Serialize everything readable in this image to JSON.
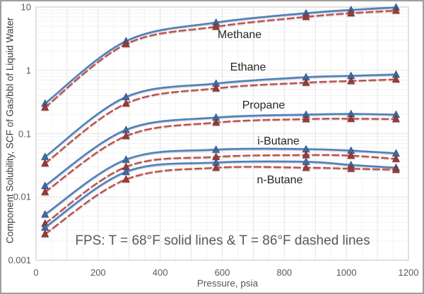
{
  "chart_data": {
    "type": "line",
    "title": "",
    "xlabel": "Pressure, psia",
    "ylabel": "Component Solubility, SCF of Gas/bbl of Liquid Water",
    "annotation": "FPS: T = 68°F solid lines & T = 86°F dashed lines",
    "legend_position": "none",
    "grid": true,
    "x_axis": {
      "min": 0,
      "max": 1200,
      "ticks": [
        0,
        200,
        400,
        600,
        800,
        1000,
        1200
      ],
      "minor_step": 50
    },
    "y_axis": {
      "scale": "log",
      "min": 0.001,
      "max": 10,
      "tick_labels": [
        "10",
        "1",
        "0.1",
        "0.01",
        "0.001"
      ]
    },
    "x": [
      29,
      290,
      580,
      870,
      1015,
      1160
    ],
    "series": [
      {
        "name": "Methane",
        "temperature": "68°F",
        "line": "solid",
        "color": "#4F81BD",
        "marker": "triangle",
        "values": [
          0.3,
          2.9,
          5.7,
          8.0,
          9.0,
          9.9
        ]
      },
      {
        "name": "Methane",
        "temperature": "86°F",
        "line": "dashed",
        "color": "#C0504D",
        "marker": "triangle",
        "values": [
          0.26,
          2.6,
          4.9,
          7.0,
          8.0,
          8.8
        ]
      },
      {
        "name": "Ethane",
        "temperature": "68°F",
        "line": "solid",
        "color": "#4F81BD",
        "marker": "triangle",
        "values": [
          0.043,
          0.38,
          0.62,
          0.78,
          0.82,
          0.86
        ]
      },
      {
        "name": "Ethane",
        "temperature": "86°F",
        "line": "dashed",
        "color": "#C0504D",
        "marker": "triangle",
        "values": [
          0.034,
          0.3,
          0.52,
          0.64,
          0.68,
          0.72
        ]
      },
      {
        "name": "Propane",
        "temperature": "68°F",
        "line": "solid",
        "color": "#4F81BD",
        "marker": "triangle",
        "values": [
          0.015,
          0.115,
          0.18,
          0.2,
          0.205,
          0.2
        ]
      },
      {
        "name": "Propane",
        "temperature": "86°F",
        "line": "dashed",
        "color": "#C0504D",
        "marker": "triangle",
        "values": [
          0.012,
          0.092,
          0.15,
          0.17,
          0.172,
          0.17
        ]
      },
      {
        "name": "i-Butane",
        "temperature": "68°F",
        "line": "solid",
        "color": "#4F81BD",
        "marker": "triangle",
        "values": [
          0.0053,
          0.039,
          0.056,
          0.057,
          0.054,
          0.049
        ]
      },
      {
        "name": "i-Butane",
        "temperature": "86°F",
        "line": "dashed",
        "color": "#C0504D",
        "marker": "triangle",
        "values": [
          0.0038,
          0.03,
          0.043,
          0.046,
          0.045,
          0.04
        ]
      },
      {
        "name": "n-Butane",
        "temperature": "68°F",
        "line": "solid",
        "color": "#4F81BD",
        "marker": "triangle",
        "values": [
          0.0033,
          0.025,
          0.035,
          0.036,
          0.032,
          0.029
        ]
      },
      {
        "name": "n-Butane",
        "temperature": "86°F",
        "line": "dashed",
        "color": "#C0504D",
        "marker": "triangle",
        "values": [
          0.0026,
          0.019,
          0.029,
          0.029,
          0.028,
          0.027
        ]
      }
    ],
    "series_labels": [
      {
        "text": "Methane"
      },
      {
        "text": "Ethane"
      },
      {
        "text": "Propane"
      },
      {
        "text": "i-Butane"
      },
      {
        "text": "n-Butane"
      }
    ],
    "colors": {
      "solid_68F": "#4F81BD",
      "dashed_86F": "#C0504D",
      "marker_blue": "#3F6BA5",
      "marker_blue_edge": "#2F5380",
      "marker_red": "#9E3A38",
      "marker_red_edge": "#772C2A",
      "grid_minor": "#F2F2F2",
      "grid_major": "#E3E3E3",
      "plot_border": "#C6C6C6",
      "tick_text": "#595959"
    }
  }
}
